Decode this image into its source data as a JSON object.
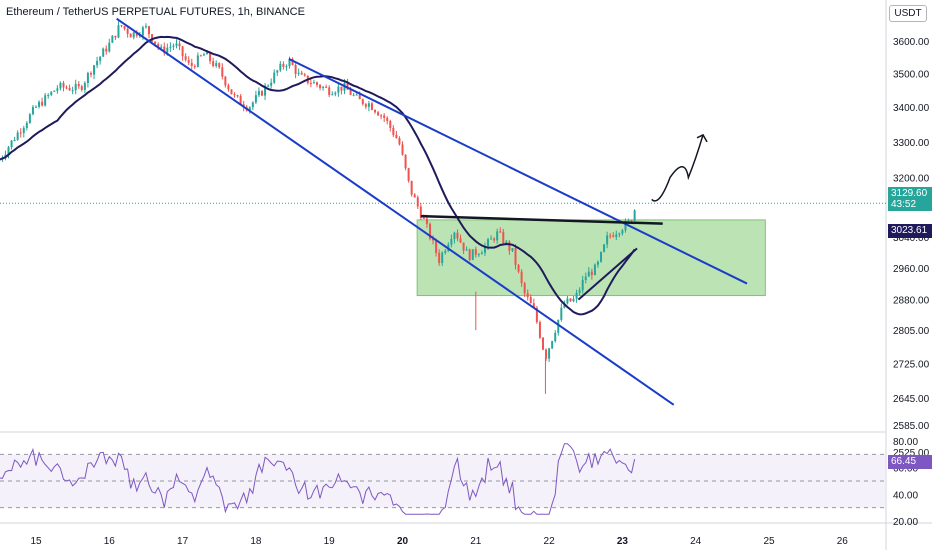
{
  "chart_title": "Ethereum / TetherUS PERPETUAL FUTURES, 1h, BINANCE",
  "currency": "USDT",
  "last_price": "3129.60",
  "countdown": "43:52",
  "ma_value": "3023.61",
  "rsi_value": "66.45",
  "colors": {
    "up": "#26a69a",
    "down": "#ef5350",
    "ma": "#1f1a5c",
    "channel": "#1a3cc8",
    "zone": "#a5d99b",
    "rsi": "#7e57c2"
  },
  "chart_data": [
    {
      "type": "candlestick",
      "title": "Ethereum / TetherUS PERPETUAL FUTURES, 1h, BINANCE",
      "x_ticks": [
        "15",
        "16",
        "17",
        "18",
        "19",
        "20",
        "21",
        "22",
        "23",
        "24",
        "25",
        "26"
      ],
      "y_ticks": [
        "3600.00",
        "3500.00",
        "3400.00",
        "3300.00",
        "3200.00",
        "3129.60",
        "3040.00",
        "2960.00",
        "2880.00",
        "2805.00",
        "2725.00",
        "2645.00",
        "2585.00",
        "2525.00"
      ],
      "y_scale": "log",
      "ylim": [
        2525,
        3680
      ],
      "xlim": [
        14.5,
        26.5
      ],
      "series": [
        {
          "name": "close",
          "points": [
            [
              14.5,
              3250
            ],
            [
              14.8,
              3340
            ],
            [
              15.0,
              3400
            ],
            [
              15.3,
              3460
            ],
            [
              15.6,
              3455
            ],
            [
              15.8,
              3530
            ],
            [
              16.0,
              3590
            ],
            [
              16.15,
              3650
            ],
            [
              16.3,
              3620
            ],
            [
              16.5,
              3640
            ],
            [
              16.7,
              3570
            ],
            [
              16.9,
              3590
            ],
            [
              17.1,
              3520
            ],
            [
              17.3,
              3560
            ],
            [
              17.5,
              3510
            ],
            [
              17.7,
              3430
            ],
            [
              17.9,
              3400
            ],
            [
              18.1,
              3450
            ],
            [
              18.3,
              3510
            ],
            [
              18.45,
              3540
            ],
            [
              18.6,
              3490
            ],
            [
              18.8,
              3470
            ],
            [
              19.0,
              3450
            ],
            [
              19.2,
              3460
            ],
            [
              19.4,
              3420
            ],
            [
              19.55,
              3410
            ],
            [
              19.75,
              3370
            ],
            [
              19.95,
              3300
            ],
            [
              20.1,
              3170
            ],
            [
              20.3,
              3080
            ],
            [
              20.5,
              2980
            ],
            [
              20.7,
              3060
            ],
            [
              20.9,
              2990
            ],
            [
              21.1,
              3010
            ],
            [
              21.3,
              3050
            ],
            [
              21.5,
              3000
            ],
            [
              21.65,
              2900
            ],
            [
              21.8,
              2850
            ],
            [
              21.95,
              2740
            ],
            [
              22.05,
              2790
            ],
            [
              22.2,
              2870
            ],
            [
              22.35,
              2880
            ],
            [
              22.5,
              2940
            ],
            [
              22.65,
              2960
            ],
            [
              22.8,
              3040
            ],
            [
              22.95,
              3060
            ],
            [
              23.1,
              3080
            ],
            [
              23.2,
              3129.6
            ]
          ]
        },
        {
          "name": "MA",
          "value": 3023.61
        }
      ],
      "annotations": [
        {
          "label": "upper channel line",
          "from": [
            18.45,
            3545
          ],
          "to": [
            24.7,
            2920
          ]
        },
        {
          "label": "lower channel line",
          "from": [
            16.1,
            3670
          ],
          "to": [
            23.7,
            2630
          ]
        },
        {
          "label": "horizontal resistance",
          "from": [
            20.25,
            3095
          ],
          "to": [
            23.55,
            3075
          ]
        },
        {
          "label": "support zone",
          "x": [
            20.2,
            24.95
          ],
          "y": [
            2890,
            3085
          ]
        },
        {
          "label": "projection arrow",
          "from": [
            23.4,
            3140
          ],
          "to": [
            24.1,
            3320
          ]
        }
      ]
    },
    {
      "type": "line",
      "name": "RSI",
      "y_ticks": [
        "80.00",
        "60.00",
        "40.00",
        "20.00"
      ],
      "ylim": [
        15,
        85
      ],
      "bands": [
        70,
        50,
        30
      ],
      "last_value": 66.45
    }
  ]
}
